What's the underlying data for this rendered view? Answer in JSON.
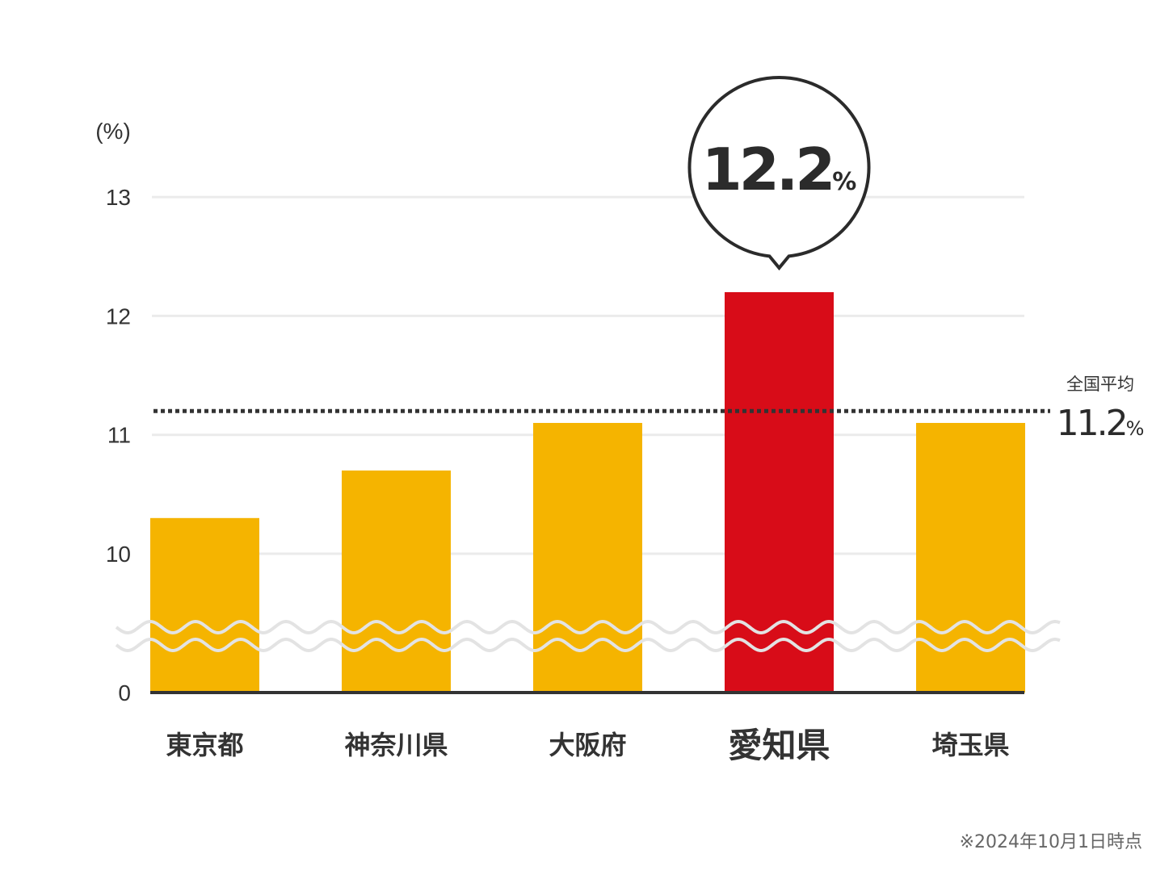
{
  "chart_data": {
    "type": "bar",
    "unit_label": "(%)",
    "categories": [
      "東京都",
      "神奈川県",
      "大阪府",
      "愛知県",
      "埼玉県"
    ],
    "values": [
      10.3,
      10.7,
      11.1,
      12.2,
      11.1
    ],
    "highlight_index": 3,
    "y_ticks": [
      0,
      10,
      11,
      12,
      13
    ],
    "axis_break": true,
    "grid": true,
    "callout": {
      "value": "12.2",
      "unit": "%"
    },
    "average": {
      "label": "全国平均",
      "value": 11.2,
      "value_text": "11.2",
      "unit": "%"
    },
    "footnote": "※2024年10月1日時点",
    "colors": {
      "bar": "#F5B400",
      "highlight": "#D80C18",
      "average_line": "#333333",
      "grid": "#EBEBEB",
      "axis": "#333333"
    }
  }
}
